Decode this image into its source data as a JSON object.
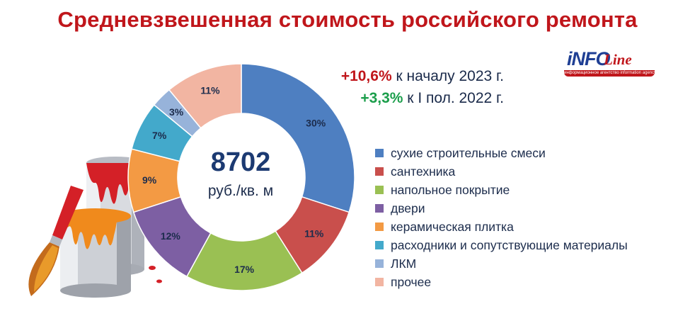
{
  "title": "Средневзвешенная стоимость российского ремонта",
  "logo": {
    "main": "iNFO",
    "line": "Line",
    "bar_text": "информационное агентство information agency"
  },
  "growth": {
    "line1_value": "+10,6%",
    "line1_text": " к началу 2023 г.",
    "line2_value": "+3,3%",
    "line2_text": " к I пол. 2022 г.",
    "line1_color": "#c0161b",
    "line2_color": "#1b9e4b"
  },
  "center": {
    "value": "8702",
    "unit": "руб./кв. м"
  },
  "chart_data": {
    "type": "pie",
    "donut": true,
    "legend_placement": "right",
    "series": [
      {
        "name": "сухие строительные смеси",
        "value": 30,
        "label": "30%",
        "color": "#4e7fc1"
      },
      {
        "name": "сантехника",
        "value": 11,
        "label": "11%",
        "color": "#c94f4c"
      },
      {
        "name": "напольное покрытие",
        "value": 17,
        "label": "17%",
        "color": "#9ac053"
      },
      {
        "name": "двери",
        "value": 12,
        "label": "12%",
        "color": "#7d5fa3"
      },
      {
        "name": "керамическая плитка",
        "value": 9,
        "label": "9%",
        "color": "#f39a44"
      },
      {
        "name": "расходники и сопутствующие материалы",
        "value": 7,
        "label": "7%",
        "color": "#43a9cb"
      },
      {
        "name": "ЛКМ",
        "value": 3,
        "label": "3%",
        "color": "#97b3da"
      },
      {
        "name": "прочее",
        "value": 11,
        "label": "11%",
        "color": "#f2b5a2"
      }
    ]
  }
}
